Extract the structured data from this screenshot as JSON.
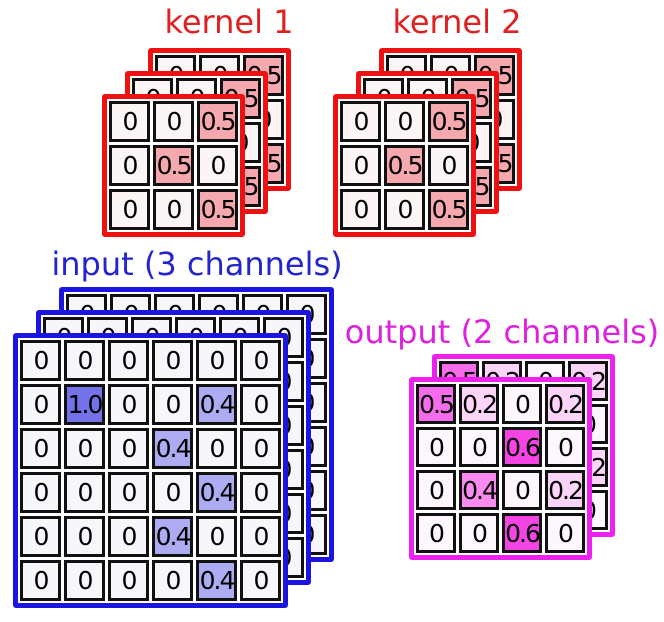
{
  "labels": {
    "kernel1": "kernel 1",
    "kernel2": "kernel 2",
    "input": "input (3 channels)",
    "output": "output (2 channels)"
  },
  "colors": {
    "kernel_title": "#dd2222",
    "kernel_border": "#ee1111",
    "input_title": "#2525cc",
    "input_border": "#1c15e0",
    "output_title": "#dd22dd",
    "output_border": "#ee22ee",
    "cell_border": "#111111",
    "value_text": "#000000"
  },
  "cell_colors": {
    "kernel": {
      "0": "#fbf6f5",
      "0.5": "#f5a9ae"
    },
    "input": {
      "0": "#f7f6fb",
      "0.4": "#adacf2",
      "1.0": "#7472e9"
    },
    "output": {
      "0": "#fdf6fc",
      "0.2": "#fcd4f8",
      "0.4": "#f98aee",
      "0.5": "#f76cea",
      "0.6": "#f544e4"
    }
  },
  "stacks": {
    "kernel1": {
      "family": "kernel",
      "layers": 3,
      "matrix": [
        [
          "0",
          "0",
          "0.5"
        ],
        [
          "0",
          "0.5",
          "0"
        ],
        [
          "0",
          "0",
          "0.5"
        ]
      ]
    },
    "kernel2": {
      "family": "kernel",
      "layers": 3,
      "matrix": [
        [
          "0",
          "0",
          "0.5"
        ],
        [
          "0",
          "0.5",
          "0"
        ],
        [
          "0",
          "0",
          "0.5"
        ]
      ]
    },
    "input": {
      "family": "input",
      "layers": 3,
      "matrix": [
        [
          "0",
          "0",
          "0",
          "0",
          "0",
          "0"
        ],
        [
          "0",
          "1.0",
          "0",
          "0",
          "0.4",
          "0"
        ],
        [
          "0",
          "0",
          "0",
          "0.4",
          "0",
          "0"
        ],
        [
          "0",
          "0",
          "0",
          "0",
          "0.4",
          "0"
        ],
        [
          "0",
          "0",
          "0",
          "0.4",
          "0",
          "0"
        ],
        [
          "0",
          "0",
          "0",
          "0",
          "0.4",
          "0"
        ]
      ]
    },
    "output": {
      "family": "output",
      "layers": 2,
      "matrix": [
        [
          "0.5",
          "0.2",
          "0",
          "0.2"
        ],
        [
          "0",
          "0",
          "0.6",
          "0"
        ],
        [
          "0",
          "0.4",
          "0",
          "0.2"
        ],
        [
          "0",
          "0",
          "0.6",
          "0"
        ]
      ]
    }
  }
}
